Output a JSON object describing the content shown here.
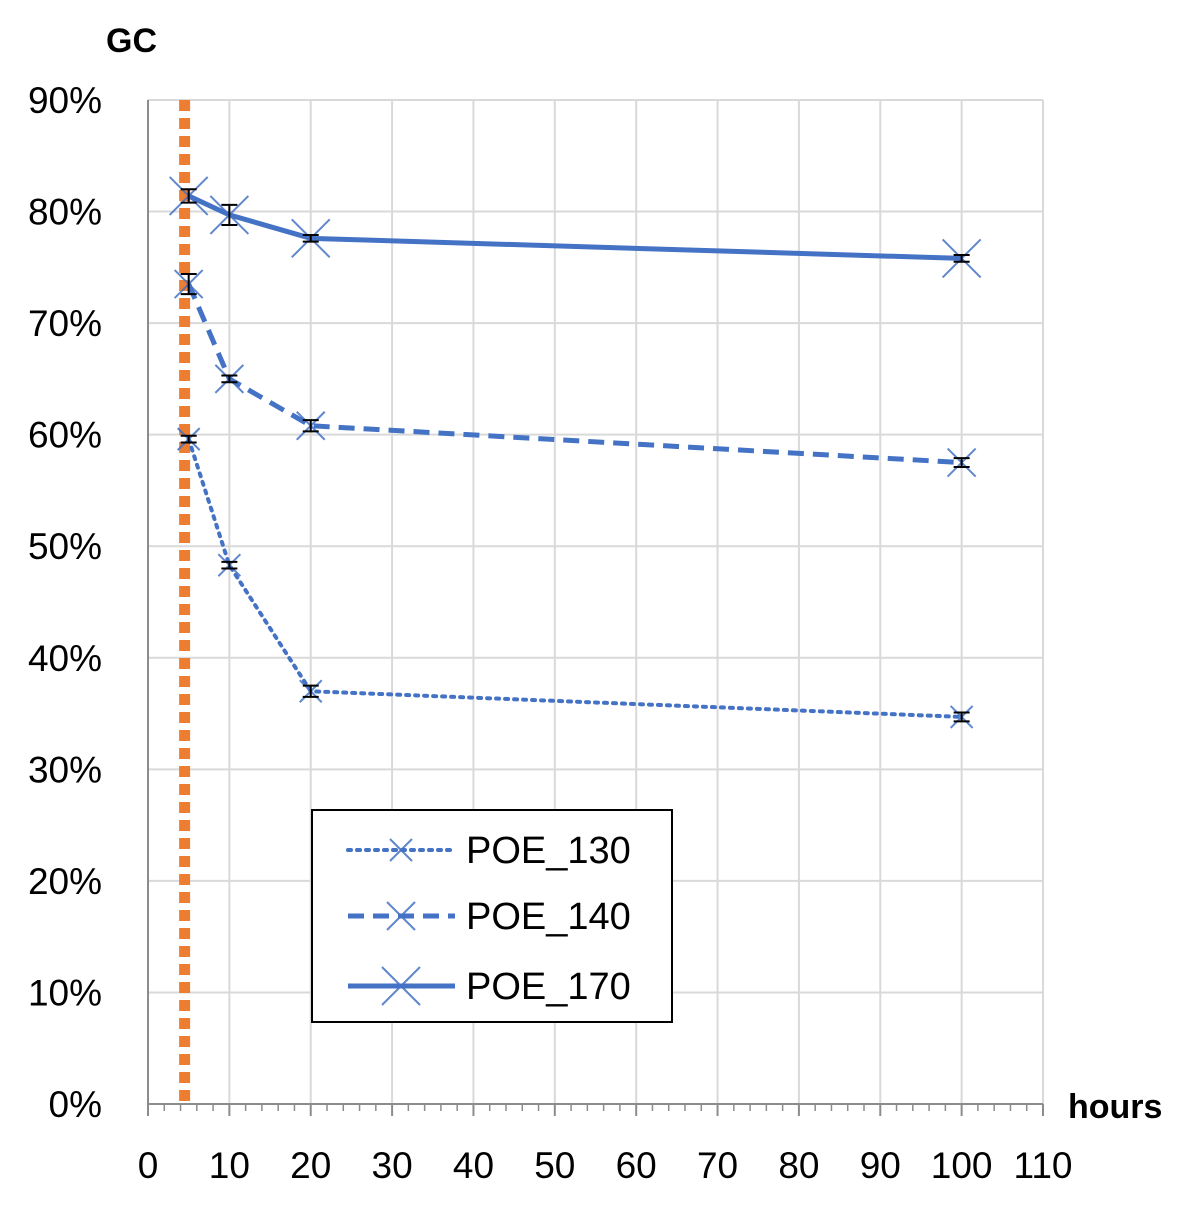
{
  "chart_data": {
    "type": "line",
    "ylabel": "GC",
    "xlabel": "hours",
    "xlim": [
      0,
      110
    ],
    "ylim": [
      0,
      90
    ],
    "x_ticks": [
      "0",
      "10",
      "20",
      "30",
      "40",
      "50",
      "60",
      "70",
      "80",
      "90",
      "100",
      "110"
    ],
    "y_ticks": [
      "0%",
      "10%",
      "20%",
      "30%",
      "40%",
      "50%",
      "60%",
      "70%",
      "80%",
      "90%"
    ],
    "grid": true,
    "legend_position": "bottom-center",
    "reference_line": {
      "x": 4.5,
      "color": "#ED7D31",
      "style": "dotted"
    },
    "series": [
      {
        "name": "POE_130",
        "color": "#4472C4",
        "line_style": "dotted",
        "x": [
          5,
          10,
          20,
          100
        ],
        "y": [
          59.6,
          48.3,
          37.0,
          34.7
        ],
        "error": [
          0.3,
          0.3,
          0.5,
          0.4
        ]
      },
      {
        "name": "POE_140",
        "color": "#4472C4",
        "line_style": "dashed",
        "x": [
          5,
          10,
          20,
          100
        ],
        "y": [
          73.5,
          65.0,
          60.8,
          57.5
        ],
        "error": [
          0.9,
          0.3,
          0.5,
          0.4
        ]
      },
      {
        "name": "POE_170",
        "color": "#4472C4",
        "line_style": "solid",
        "x": [
          5,
          10,
          20,
          100
        ],
        "y": [
          81.4,
          79.7,
          77.6,
          75.8
        ],
        "error": [
          0.6,
          0.9,
          0.3,
          0.3
        ]
      }
    ]
  }
}
